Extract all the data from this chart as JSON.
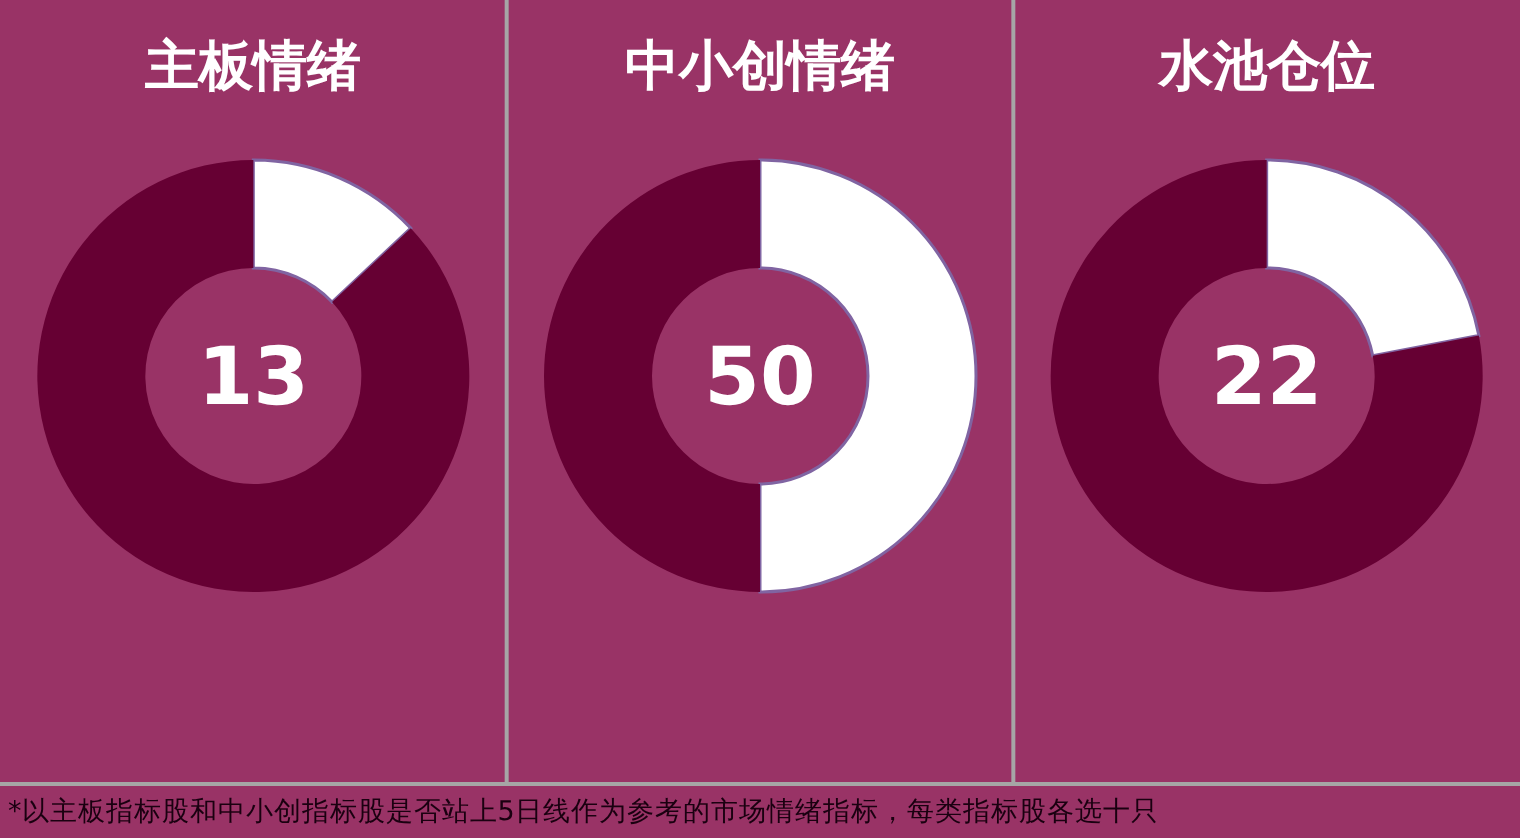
{
  "chart_data": [
    {
      "type": "donut",
      "title": "主板情绪",
      "categories": [
        null,
        null
      ],
      "values": [
        13,
        87
      ],
      "colors": [
        "#ffffff",
        "#660033"
      ],
      "annotations": [
        "13",
        "*以主板指标股和中小创指标股是否站上5日线作为参考的市场情绪指标，每类指标股各选十只"
      ]
    },
    {
      "type": "donut",
      "title": "中小创情绪",
      "categories": [
        null,
        null
      ],
      "values": [
        50,
        50
      ],
      "colors": [
        "#ffffff",
        "#660033"
      ],
      "annotations": [
        "50"
      ]
    },
    {
      "type": "donut",
      "title": "水池仓位",
      "categories": [
        null,
        null
      ],
      "values": [
        22,
        78
      ],
      "colors": [
        "#ffffff",
        "#660033"
      ],
      "annotations": [
        "22"
      ]
    }
  ]
}
